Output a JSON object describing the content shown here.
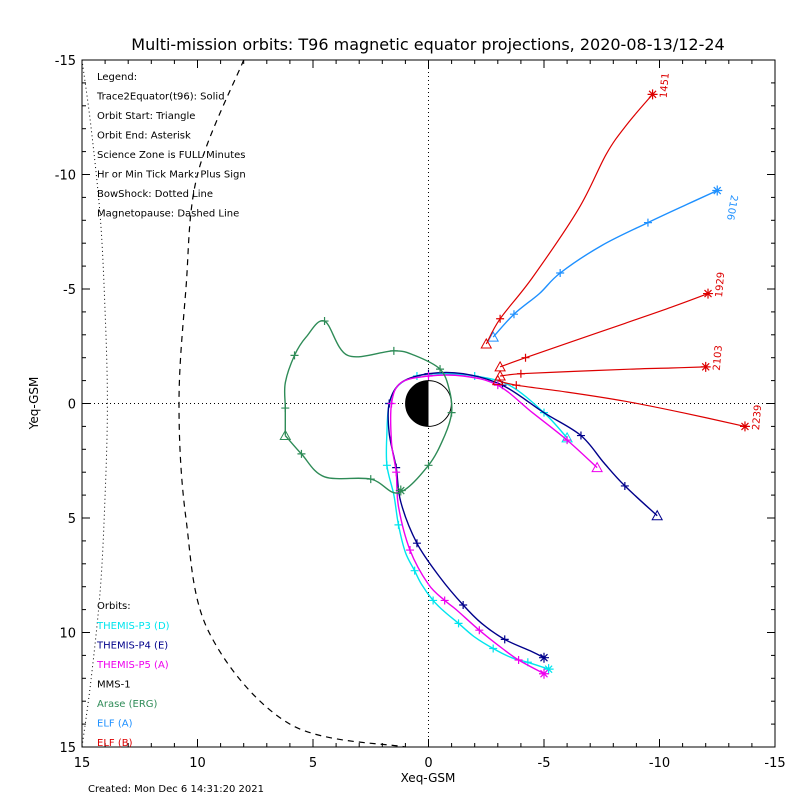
{
  "chart_data": {
    "type": "scatter",
    "title": "Multi-mission orbits: T96 magnetic equator projections, 2020-08-13/12-24",
    "xlabel": "Xeq-GSM",
    "ylabel": "Yeq-GSM",
    "xlim": [
      15,
      -15
    ],
    "ylim": [
      -15,
      15
    ],
    "x_ticks": [
      15,
      10,
      5,
      0,
      -5,
      -10,
      -15
    ],
    "y_ticks": [
      -15,
      -10,
      -5,
      0,
      5,
      10,
      15
    ],
    "x_tick_labels": [
      "15",
      "10",
      "5",
      "0",
      "-5",
      "-10",
      "-15"
    ],
    "y_tick_labels": [
      "-15",
      "-10",
      "-5",
      "0",
      "5",
      "10",
      "15"
    ],
    "legend": [
      "Legend:",
      "Trace2Equator(t96): Solid",
      "Orbit Start: Triangle",
      "Orbit End: Asterisk",
      "Science Zone is FULL Minutes",
      "Hr or Min Tick Mark: Plus Sign",
      "BowShock: Dotted Line",
      "Magnetopause: Dashed Line"
    ],
    "orbits_header": "Orbits:",
    "created": "Created: Mon Dec  6 14:31:20 2021",
    "boundaries": {
      "bowshock": [
        [
          15.0,
          -15.0
        ],
        [
          14.6,
          -12.0
        ],
        [
          14.2,
          -8.0
        ],
        [
          14.0,
          -4.0
        ],
        [
          13.9,
          0
        ],
        [
          14.0,
          4.0
        ],
        [
          14.2,
          8.0
        ],
        [
          14.6,
          12.0
        ],
        [
          15.0,
          15.0
        ]
      ],
      "magnetopause": [
        [
          8.0,
          -15.0
        ],
        [
          10.0,
          -10.0
        ],
        [
          10.5,
          -5.0
        ],
        [
          10.8,
          0
        ],
        [
          10.5,
          5.0
        ],
        [
          9.5,
          10.0
        ],
        [
          6.0,
          14.0
        ],
        [
          1.0,
          15.0
        ]
      ]
    },
    "series": [
      {
        "name": "THEMIS-P3 (D)",
        "color": "#00e5ee",
        "points": [
          [
            -6.0,
            1.5
          ],
          [
            -5.0,
            0.4
          ],
          [
            -3.5,
            -0.8
          ],
          [
            -2.0,
            -1.2
          ],
          [
            -0.5,
            -1.3
          ],
          [
            0.5,
            -1.2
          ],
          [
            1.3,
            -0.8
          ],
          [
            1.7,
            0
          ],
          [
            1.8,
            1.3
          ],
          [
            1.8,
            2.7
          ],
          [
            1.5,
            4.0
          ],
          [
            1.3,
            5.3
          ],
          [
            1.0,
            6.5
          ],
          [
            0.6,
            7.3
          ],
          [
            0.3,
            7.9
          ],
          [
            -0.2,
            8.6
          ],
          [
            -0.7,
            9.1
          ],
          [
            -1.3,
            9.6
          ],
          [
            -2.0,
            10.2
          ],
          [
            -2.8,
            10.7
          ],
          [
            -3.6,
            11.1
          ],
          [
            -4.3,
            11.3
          ],
          [
            -5.2,
            11.6
          ]
        ],
        "start": [
          -6.0,
          1.5
        ],
        "end": [
          -5.2,
          11.6
        ]
      },
      {
        "name": "THEMIS-P4 (E)",
        "color": "#00008b",
        "points": [
          [
            -9.9,
            4.9
          ],
          [
            -8.5,
            3.6
          ],
          [
            -7.6,
            2.6
          ],
          [
            -6.6,
            1.4
          ],
          [
            -5.0,
            0.4
          ],
          [
            -3.2,
            -0.8
          ],
          [
            -1.5,
            -1.3
          ],
          [
            0,
            -1.3
          ],
          [
            1.2,
            -0.9
          ],
          [
            1.7,
            0
          ],
          [
            1.7,
            1.3
          ],
          [
            1.4,
            2.8
          ],
          [
            1.2,
            4.3
          ],
          [
            0.5,
            6.1
          ],
          [
            -0.5,
            7.6
          ],
          [
            -1.5,
            8.8
          ],
          [
            -2.3,
            9.6
          ],
          [
            -3.3,
            10.3
          ],
          [
            -4.4,
            10.8
          ],
          [
            -5.0,
            11.1
          ]
        ],
        "start": [
          -9.9,
          4.9
        ],
        "end": [
          -5.0,
          11.1
        ]
      },
      {
        "name": "THEMIS-P5 (A)",
        "color": "#ee00ee",
        "points": [
          [
            -7.3,
            2.8
          ],
          [
            -6.0,
            1.6
          ],
          [
            -4.5,
            0.4
          ],
          [
            -3.0,
            -0.8
          ],
          [
            -1.5,
            -1.2
          ],
          [
            0,
            -1.2
          ],
          [
            1.2,
            -0.9
          ],
          [
            1.6,
            0
          ],
          [
            1.6,
            1.7
          ],
          [
            1.4,
            3.0
          ],
          [
            1.3,
            4.5
          ],
          [
            0.8,
            6.4
          ],
          [
            0,
            7.9
          ],
          [
            -0.7,
            8.6
          ],
          [
            -1.2,
            9.0
          ],
          [
            -2.2,
            9.9
          ],
          [
            -3.2,
            10.7
          ],
          [
            -3.9,
            11.2
          ],
          [
            -5.0,
            11.8
          ]
        ],
        "start": [
          -7.3,
          2.8
        ],
        "end": [
          -5.0,
          11.8
        ]
      },
      {
        "name": "MMS-1",
        "color": "#000000",
        "points": [],
        "start": null,
        "end": null
      },
      {
        "name": "Arase (ERG)",
        "color": "#2e8b57",
        "points": [
          [
            6.2,
            1.4
          ],
          [
            6.2,
            0.2
          ],
          [
            6.2,
            -0.9
          ],
          [
            5.8,
            -2.1
          ],
          [
            5.3,
            -2.9
          ],
          [
            4.5,
            -3.6
          ],
          [
            3.5,
            -2.1
          ],
          [
            1.5,
            -2.3
          ],
          [
            0.6,
            -2.1
          ],
          [
            -0.5,
            -1.5
          ],
          [
            -0.9,
            -0.6
          ],
          [
            -1.0,
            0.4
          ],
          [
            -0.7,
            1.4
          ],
          [
            0,
            2.7
          ],
          [
            1.3,
            3.9
          ],
          [
            2.5,
            3.3
          ],
          [
            4.5,
            3.2
          ],
          [
            5.5,
            2.2
          ],
          [
            6.2,
            1.4
          ]
        ],
        "start": [
          6.2,
          1.4
        ],
        "end": [
          1.2,
          3.8
        ]
      },
      {
        "name": "ELF (A)",
        "color": "#1e90ff",
        "points": [
          [
            -2.8,
            -2.9
          ],
          [
            -3.7,
            -3.9
          ],
          [
            -4.8,
            -4.8
          ],
          [
            -5.7,
            -5.7
          ],
          [
            -7.5,
            -6.9
          ],
          [
            -9.5,
            -7.9
          ],
          [
            -11.2,
            -8.7
          ],
          [
            -12.5,
            -9.3
          ]
        ],
        "start": [
          -2.8,
          -2.9
        ],
        "end": [
          -12.5,
          -9.3
        ],
        "label": "2106"
      },
      {
        "name": "ELF (B)",
        "color": "#dd0000",
        "points": [],
        "start": null,
        "end": null
      }
    ],
    "elf_b_tracks": [
      {
        "label": "1451",
        "points": [
          [
            -2.5,
            -2.6
          ],
          [
            -3.1,
            -3.7
          ],
          [
            -4.5,
            -5.5
          ],
          [
            -6.5,
            -8.5
          ],
          [
            -7.7,
            -10.9
          ],
          [
            -8.6,
            -12.2
          ],
          [
            -9.7,
            -13.5
          ]
        ],
        "start": [
          -2.5,
          -2.6
        ],
        "end": [
          -9.7,
          -13.5
        ]
      },
      {
        "label": "1929",
        "points": [
          [
            -3.1,
            -1.6
          ],
          [
            -4.2,
            -2.0
          ],
          [
            -6.2,
            -2.7
          ],
          [
            -8.5,
            -3.5
          ],
          [
            -10.5,
            -4.2
          ],
          [
            -12.1,
            -4.8
          ]
        ],
        "start": [
          -3.1,
          -1.6
        ],
        "end": [
          -12.1,
          -4.8
        ]
      },
      {
        "label": "2103",
        "points": [
          [
            -3.1,
            -1.2
          ],
          [
            -4.0,
            -1.3
          ],
          [
            -6.3,
            -1.4
          ],
          [
            -8.7,
            -1.5
          ],
          [
            -10.5,
            -1.55
          ],
          [
            -12.0,
            -1.6
          ]
        ],
        "start": [
          -3.1,
          -1.2
        ],
        "end": [
          -12.0,
          -1.6
        ]
      },
      {
        "label": "2239",
        "points": [
          [
            -3.0,
            -1.0
          ],
          [
            -3.8,
            -0.8
          ],
          [
            -6.0,
            -0.5
          ],
          [
            -8.5,
            -0.1
          ],
          [
            -11.0,
            0.4
          ],
          [
            -13.7,
            1.0
          ]
        ],
        "start": [
          -3.0,
          -1.0
        ],
        "end": [
          -13.7,
          1.0
        ]
      }
    ]
  }
}
